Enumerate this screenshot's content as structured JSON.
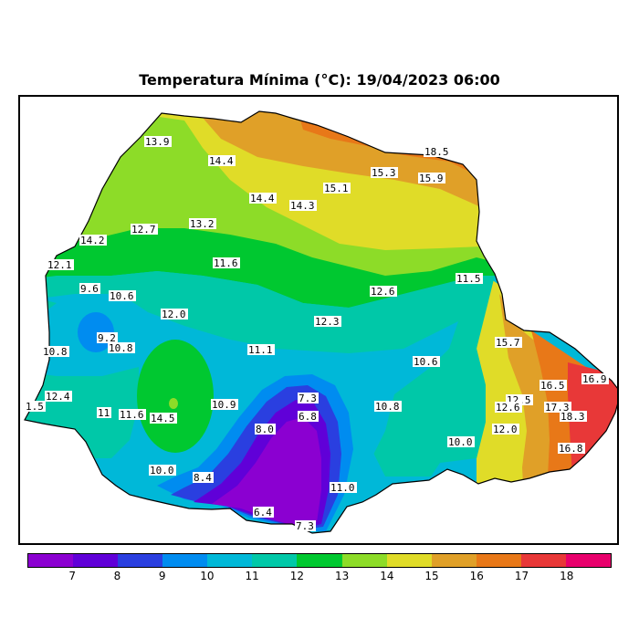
{
  "title": "Temperatura Mínima (°C): 19/04/2023 06:00",
  "legend": {
    "colors": [
      "#8b00d1",
      "#6000d8",
      "#2a3fe0",
      "#008cf0",
      "#00b8d8",
      "#00c8a8",
      "#00c830",
      "#8ddc28",
      "#e0dc28",
      "#e0a028",
      "#e87818",
      "#e83838",
      "#e8006c"
    ],
    "ticks": [
      "7",
      "8",
      "9",
      "10",
      "11",
      "12",
      "13",
      "14",
      "15",
      "16",
      "17",
      "18"
    ]
  },
  "isotherm_labels": [
    {
      "text": "13.9"
    },
    {
      "text": "14.4"
    },
    {
      "text": "15.3"
    },
    {
      "text": "18.5"
    },
    {
      "text": "15.9"
    },
    {
      "text": "15.1"
    },
    {
      "text": "14.4"
    },
    {
      "text": "14.3"
    },
    {
      "text": "13.2"
    },
    {
      "text": "14.2"
    },
    {
      "text": "12.7"
    },
    {
      "text": "12.1"
    },
    {
      "text": "11.6"
    },
    {
      "text": "12.6"
    },
    {
      "text": "11.5"
    },
    {
      "text": "9.6"
    },
    {
      "text": "10.6"
    },
    {
      "text": "12.0"
    },
    {
      "text": "12.3"
    },
    {
      "text": "9.2"
    },
    {
      "text": "10.8"
    },
    {
      "text": "10.8"
    },
    {
      "text": "11.1"
    },
    {
      "text": "15.7"
    },
    {
      "text": "10.6"
    },
    {
      "text": "12.4"
    },
    {
      "text": "1.5"
    },
    {
      "text": "11"
    },
    {
      "text": "11.6"
    },
    {
      "text": "14.5"
    },
    {
      "text": "10.9"
    },
    {
      "text": "7.3"
    },
    {
      "text": "6.8"
    },
    {
      "text": "10.8"
    },
    {
      "text": "12.5"
    },
    {
      "text": "12.6"
    },
    {
      "text": "16.5"
    },
    {
      "text": "16.9"
    },
    {
      "text": "17.3"
    },
    {
      "text": "18.3"
    },
    {
      "text": "12.0"
    },
    {
      "text": "8.0"
    },
    {
      "text": "10.0"
    },
    {
      "text": "16.8"
    },
    {
      "text": "10.0"
    },
    {
      "text": "8.4"
    },
    {
      "text": "11.0"
    },
    {
      "text": "6.4"
    },
    {
      "text": "7.3"
    }
  ]
}
